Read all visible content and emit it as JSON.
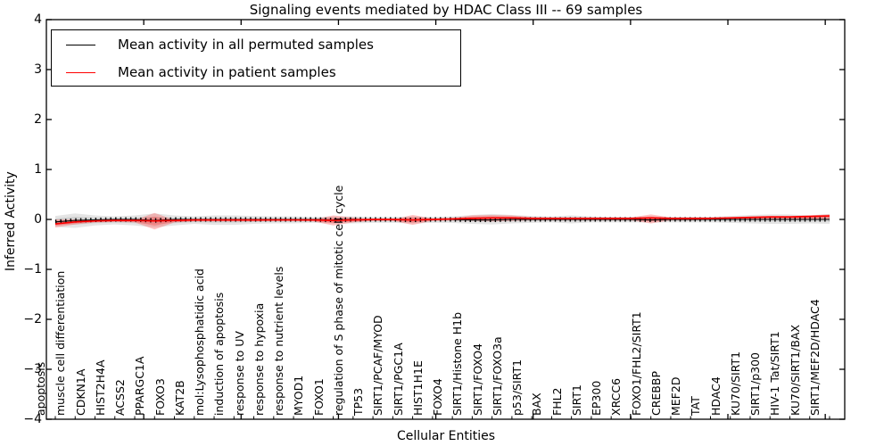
{
  "chart_data": {
    "type": "line",
    "title": "Signaling events mediated by HDAC Class III -- 69 samples",
    "xlabel": "Cellular Entities",
    "ylabel": "Inferred Activity",
    "ylim": [
      -4,
      4
    ],
    "y_tick_labels": [
      "4",
      "3",
      "2",
      "1",
      "0",
      "−1",
      "−2",
      "−3",
      "−4"
    ],
    "grid": false,
    "legend_position": "upper left",
    "categories": [
      "apoptosis",
      "muscle cell differentiation",
      "CDKN1A",
      "HIST2H4A",
      "ACSS2",
      "PPARGC1A",
      "FOXO3",
      "KAT2B",
      "mol:Lysophosphatidic acid",
      "induction of apoptosis",
      "response to UV",
      "response to hypoxia",
      "response to nutrient levels",
      "MYOD1",
      "FOXO1",
      "regulation of S phase of mitotic cell cycle",
      "TP53",
      "SIRT1/PCAF/MYOD",
      "SIRT1/PGC1A",
      "HIST1H1E",
      "FOXO4",
      "SIRT1/Histone H1b",
      "SIRT1/FOXO4",
      "SIRT1/FOXO3a",
      "p53/SIRT1",
      "BAX",
      "FHL2",
      "SIRT1",
      "EP300",
      "XRCC6",
      "FOXO1/FHL2/SIRT1",
      "CREBBP",
      "MEF2D",
      "TAT",
      "HDAC4",
      "KU70/SIRT1",
      "SIRT1/p300",
      "HIV-1 Tat/SIRT1",
      "KU70/SIRT1/BAX",
      "SIRT1/MEF2D/HDAC4"
    ],
    "series": [
      {
        "name": "Mean activity in all permuted samples",
        "color": "#000000",
        "band_color": "#aaaaaa",
        "values": [
          -0.05,
          -0.02,
          -0.01,
          0,
          0,
          -0.02,
          0,
          0,
          0,
          0,
          0,
          0,
          0,
          0,
          -0.01,
          0,
          0,
          0,
          -0.01,
          0,
          0,
          -0.01,
          -0.01,
          0,
          0,
          0,
          0,
          0,
          0,
          0,
          -0.01,
          0,
          0,
          0,
          0,
          0,
          0,
          0,
          0,
          0
        ],
        "band_upper": [
          0.07,
          0.12,
          0.08,
          0.06,
          0.08,
          0.12,
          0.08,
          0.06,
          0.08,
          0.08,
          0.07,
          0.06,
          0.06,
          0.05,
          0.06,
          0.06,
          0.05,
          0.05,
          0.06,
          0.05,
          0.06,
          0.09,
          0.11,
          0.09,
          0.07,
          0.06,
          0.08,
          0.06,
          0.05,
          0.05,
          0.06,
          0.05,
          0.05,
          0.05,
          0.07,
          0.09,
          0.1,
          0.1,
          0.08,
          0.11
        ],
        "band_lower": [
          -0.15,
          -0.17,
          -0.12,
          -0.1,
          -0.12,
          -0.16,
          -0.12,
          -0.09,
          -0.11,
          -0.11,
          -0.09,
          -0.08,
          -0.08,
          -0.07,
          -0.08,
          -0.08,
          -0.07,
          -0.07,
          -0.08,
          -0.07,
          -0.07,
          -0.09,
          -0.1,
          -0.08,
          -0.07,
          -0.06,
          -0.08,
          -0.06,
          -0.06,
          -0.06,
          -0.06,
          -0.06,
          -0.06,
          -0.06,
          -0.07,
          -0.08,
          -0.09,
          -0.09,
          -0.08,
          -0.09
        ]
      },
      {
        "name": "Mean activity in patient samples",
        "color": "#ff0000",
        "band_color": "#ff4444",
        "values": [
          -0.09,
          -0.05,
          -0.03,
          -0.02,
          -0.02,
          -0.03,
          -0.02,
          -0.01,
          -0.01,
          -0.01,
          -0.01,
          -0.01,
          -0.01,
          -0.01,
          -0.02,
          -0.01,
          0,
          0,
          -0.01,
          0,
          0.01,
          0.02,
          0.03,
          0.03,
          0.02,
          0.02,
          0.02,
          0.02,
          0.02,
          0.02,
          0.03,
          0.02,
          0.02,
          0.02,
          0.03,
          0.04,
          0.05,
          0.05,
          0.06,
          0.07
        ],
        "band_upper": [
          0.0,
          0.0,
          -0.01,
          -0.01,
          -0.01,
          0.13,
          -0.01,
          -0.01,
          -0.01,
          -0.01,
          -0.01,
          0,
          0,
          0,
          0.08,
          0.04,
          0,
          0,
          0.09,
          0.02,
          0.03,
          0.08,
          0.09,
          0.08,
          0.05,
          0.04,
          0.04,
          0.04,
          0.04,
          0.04,
          0.1,
          0.04,
          0.04,
          0.04,
          0.05,
          0.06,
          0.07,
          0.07,
          0.08,
          0.1
        ],
        "band_lower": [
          -0.16,
          -0.1,
          -0.06,
          -0.05,
          -0.06,
          -0.2,
          -0.06,
          -0.04,
          -0.04,
          -0.04,
          -0.04,
          -0.03,
          -0.03,
          -0.04,
          -0.12,
          -0.06,
          -0.03,
          -0.03,
          -0.11,
          -0.03,
          -0.02,
          -0.03,
          -0.04,
          -0.03,
          -0.02,
          -0.02,
          -0.02,
          -0.02,
          -0.02,
          -0.02,
          -0.08,
          -0.02,
          -0.02,
          -0.01,
          -0.01,
          -0.01,
          0,
          0,
          0,
          0.01
        ]
      }
    ]
  },
  "legend": {
    "entries": [
      {
        "label": "Mean activity in all permuted samples",
        "color": "#000000"
      },
      {
        "label": "Mean activity in patient samples",
        "color": "#ff0000"
      }
    ]
  }
}
